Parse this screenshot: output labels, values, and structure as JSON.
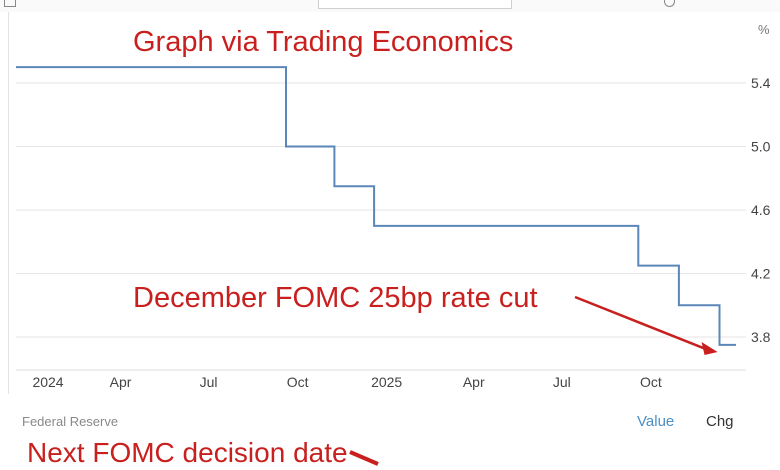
{
  "page": {
    "unit_label": "%",
    "source": "Federal Reserve",
    "toggle_value": "Value",
    "toggle_chg": "Chg"
  },
  "annotations": {
    "title": "Graph via Trading Economics",
    "rate_cut": "December FOMC 25bp rate cut",
    "next_decision": "Next FOMC decision date"
  },
  "colors": {
    "line": "#5b87b8",
    "annotation": "#c8201e",
    "grid": "#e6e6e6"
  },
  "chart_data": {
    "type": "line",
    "step": "after",
    "series": [
      {
        "x": [
          "2023-12-15",
          "2024-09-19",
          "2024-11-08",
          "2024-12-19",
          "2025-09-18",
          "2025-10-30",
          "2025-12-11",
          "2025-12-28"
        ],
        "values": [
          5.5,
          5.0,
          4.75,
          4.5,
          4.25,
          4.0,
          3.75,
          3.75
        ]
      }
    ],
    "x_ticks": [
      {
        "x": "2024-01-01",
        "label": "2024"
      },
      {
        "x": "2024-04-01",
        "label": "Apr"
      },
      {
        "x": "2024-07-01",
        "label": "Jul"
      },
      {
        "x": "2024-10-01",
        "label": "Oct"
      },
      {
        "x": "2025-01-01",
        "label": "2025"
      },
      {
        "x": "2025-04-01",
        "label": "Apr"
      },
      {
        "x": "2025-07-01",
        "label": "Jul"
      },
      {
        "x": "2025-10-01",
        "label": "Oct"
      }
    ],
    "y_ticks": [
      3.8,
      4.2,
      4.6,
      5.0,
      5.4
    ],
    "y_tick_labels": [
      "3.8",
      "4.2",
      "4.6",
      "5.0",
      "5.4"
    ],
    "ylim": [
      3.65,
      5.6
    ],
    "xlim": [
      "2023-12-15",
      "2025-12-28"
    ],
    "grid": true,
    "y_axis_position": "right"
  }
}
